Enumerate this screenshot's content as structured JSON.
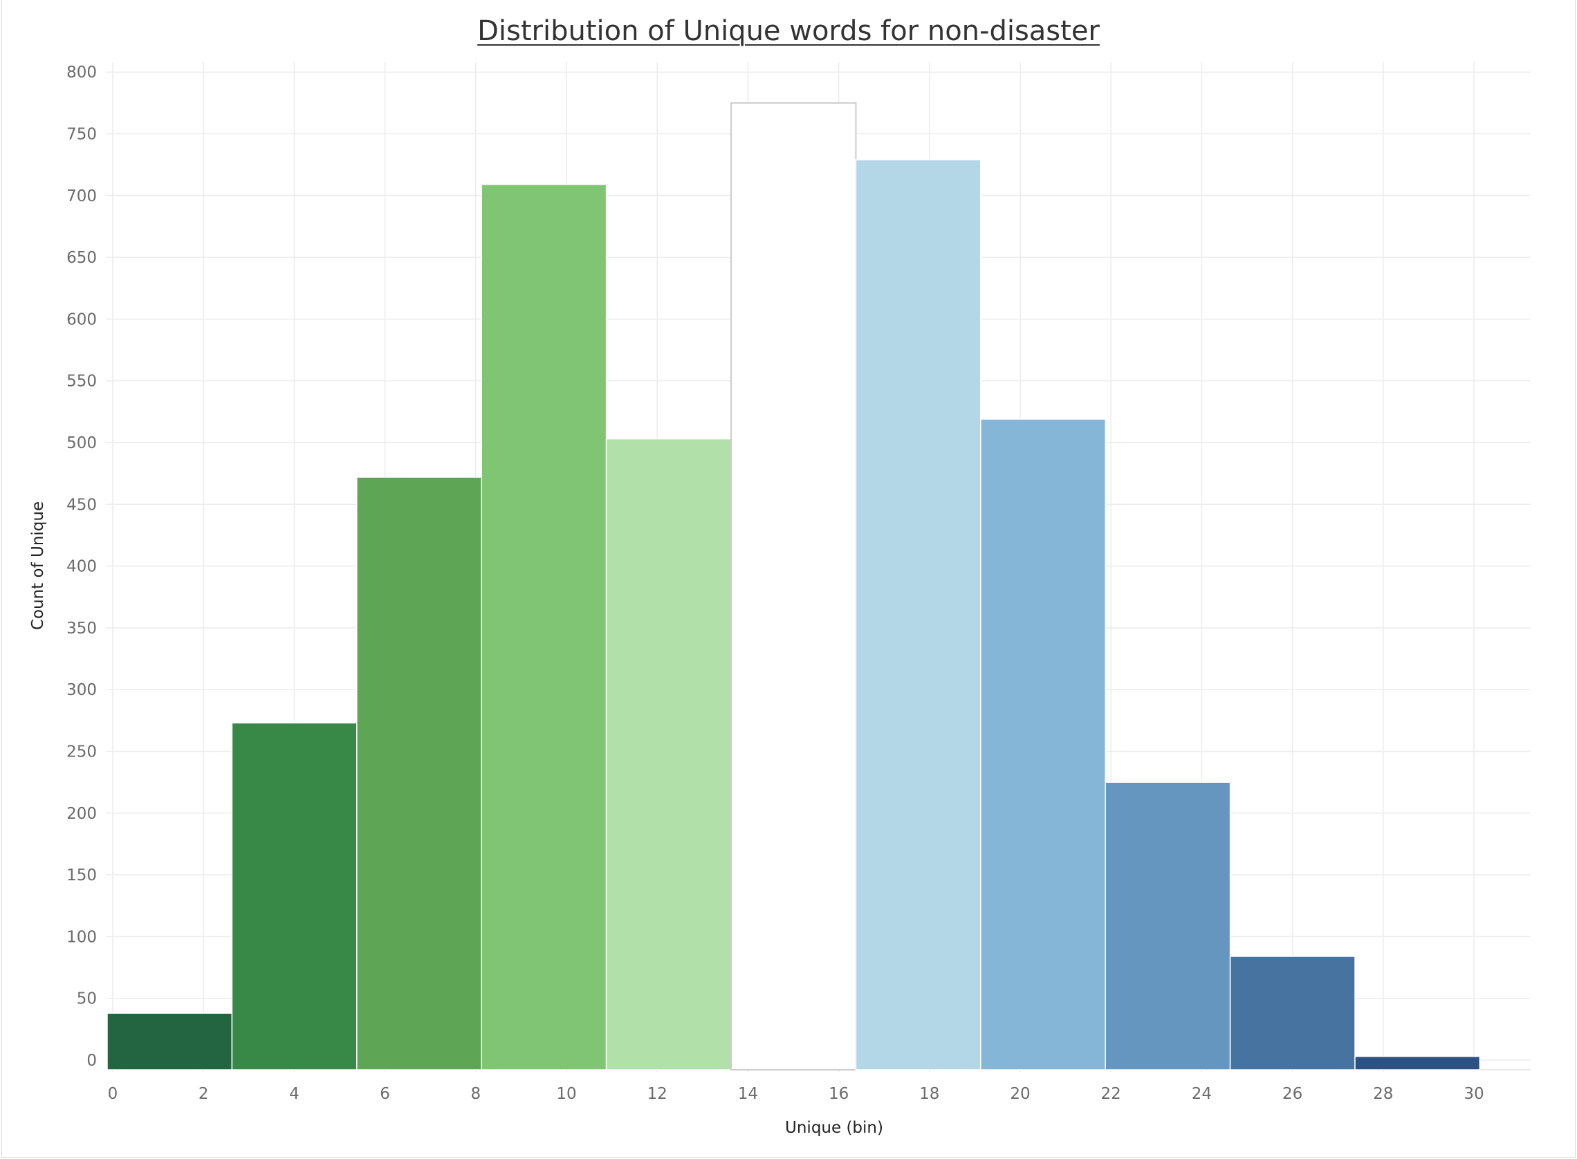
{
  "chart_data": {
    "type": "bar",
    "title": "Distribution of Unique words for non-disaster",
    "xlabel": "Unique (bin)",
    "ylabel": "Count of Unique",
    "bin_width": 2.75,
    "bins": [
      {
        "start": 0,
        "value": 38,
        "color": "#226540"
      },
      {
        "start": 2.75,
        "value": 273,
        "color": "#388947"
      },
      {
        "start": 5.5,
        "value": 472,
        "color": "#5ea655"
      },
      {
        "start": 8.25,
        "value": 709,
        "color": "#80c573"
      },
      {
        "start": 11,
        "value": 503,
        "color": "#b2e0a9"
      },
      {
        "start": 13.75,
        "value": 775,
        "color": "#ffffff"
      },
      {
        "start": 16.5,
        "value": 729,
        "color": "#b4d7e8"
      },
      {
        "start": 19.25,
        "value": 519,
        "color": "#86b6d7"
      },
      {
        "start": 22,
        "value": 225,
        "color": "#6596bf"
      },
      {
        "start": 24.75,
        "value": 84,
        "color": "#46739f"
      },
      {
        "start": 27.5,
        "value": 3,
        "color": "#2d5183"
      }
    ],
    "xlim": [
      0,
      31.5
    ],
    "ylim": [
      -8,
      815
    ],
    "xticks": [
      0,
      2,
      4,
      6,
      8,
      10,
      12,
      14,
      16,
      18,
      20,
      22,
      24,
      26,
      28,
      30
    ],
    "yticks": [
      0,
      50,
      100,
      150,
      200,
      250,
      300,
      350,
      400,
      450,
      500,
      550,
      600,
      650,
      700,
      750,
      800
    ],
    "grid": true,
    "legend": "none"
  }
}
